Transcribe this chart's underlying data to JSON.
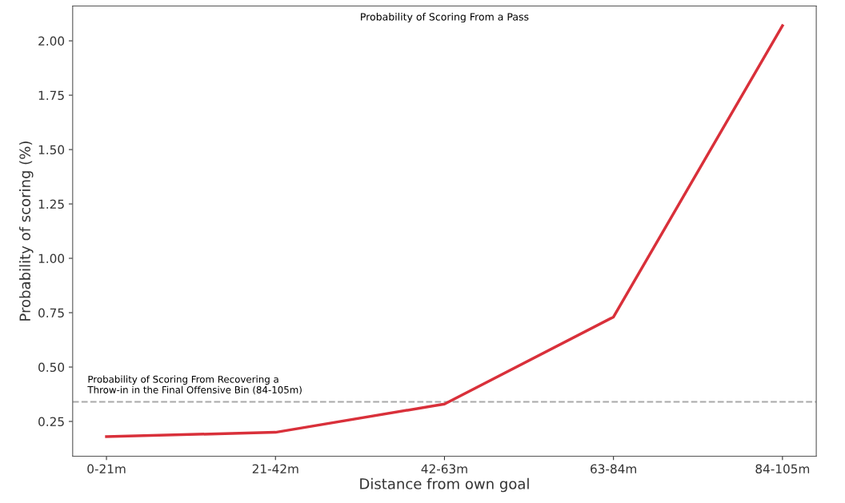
{
  "chart_data": {
    "type": "line",
    "title": "Probability of Scoring From a Pass",
    "xlabel": "Distance from own goal",
    "ylabel": "Probability of scoring (%)",
    "categories": [
      "0-21m",
      "21-42m",
      "42-63m",
      "63-84m",
      "84-105m"
    ],
    "series": [
      {
        "color": "#d9303a",
        "values": [
          0.18,
          0.2,
          0.33,
          0.73,
          2.07
        ]
      }
    ],
    "ylim": [
      0.09,
      2.16
    ],
    "yticks": [
      {
        "value": 0.25,
        "label": "0.25"
      },
      {
        "value": 0.5,
        "label": "0.50"
      },
      {
        "value": 0.75,
        "label": "0.75"
      },
      {
        "value": 1.0,
        "label": "1.00"
      },
      {
        "value": 1.25,
        "label": "1.25"
      },
      {
        "value": 1.5,
        "label": "1.50"
      },
      {
        "value": 1.75,
        "label": "1.75"
      },
      {
        "value": 2.0,
        "label": "2.00"
      }
    ],
    "ref_lines": [
      {
        "axis": "y",
        "value": 0.34,
        "label": "Probability of Scoring From Recovering a\nThrow-in in the Final Offensive Bin (84-105m)",
        "color": "#aaaaaa",
        "line_style": "dashed"
      }
    ],
    "grid": false,
    "legend": false,
    "marker": "none",
    "line_style": "solid"
  }
}
